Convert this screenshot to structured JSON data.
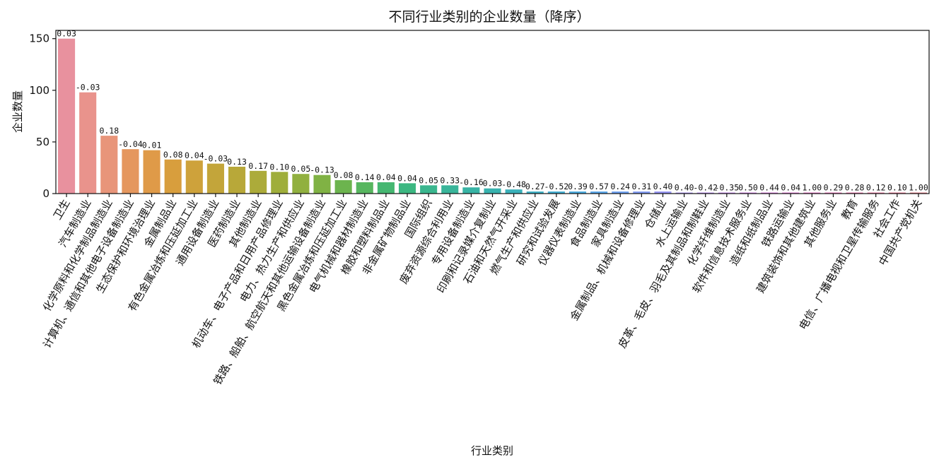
{
  "chart_data": {
    "type": "bar",
    "title": "不同行业类别的企业数量（降序）",
    "xlabel": "行业类别",
    "ylabel": "企业数量",
    "ylim": [
      0,
      158
    ],
    "yticks": [
      0,
      50,
      100,
      150
    ],
    "grid": false,
    "legend": "none",
    "categories": [
      "卫生",
      "汽车制造业",
      "化学原料和化学制品制造业",
      "计算机、通信和其他电子设备制造业",
      "生态保护和环境治理业",
      "金属制品业",
      "有色金属冶炼和压延加工业",
      "通用设备制造业",
      "医药制造业",
      "其他制造业",
      "机动车、电子产品和日用产品修理业",
      "电力、热力生产和供应业",
      "铁路、船舶、航空航天和其他运输设备制造业",
      "黑色金属冶炼和压延加工业",
      "电气机械和器材制造业",
      "橡胶和塑料制品业",
      "非金属矿物制品业",
      "国际组织",
      "废弃资源综合利用业",
      "专用设备制造业",
      "印刷和记录媒介复制业",
      "石油和天然气开采业",
      "燃气生产和供应业",
      "研究和试验发展",
      "仪器仪表制造业",
      "食品制造业",
      "家具制造业",
      "金属制品、机械和设备修理业",
      "仓储业",
      "水上运输业",
      "皮革、毛皮、羽毛及其制品和制鞋业",
      "化学纤维制造业",
      "软件和信息技术服务业",
      "造纸和纸制品业",
      "铁路运输业",
      "建筑装饰和其他建筑业",
      "其他服务业",
      "教育",
      "电信、广播电视和卫星传输服务",
      "社会工作",
      "中国共产党机关"
    ],
    "values": [
      150,
      98,
      56,
      43,
      42,
      33,
      32,
      29,
      26,
      22,
      21,
      19,
      18,
      13,
      11,
      11,
      10,
      8,
      8,
      6,
      5,
      4,
      2,
      2,
      2,
      2,
      2,
      2,
      2,
      1,
      1,
      1,
      1,
      1,
      1,
      1,
      1,
      1,
      1,
      1,
      1
    ],
    "bar_labels": [
      "0.03",
      "-0.03",
      "0.18",
      "-0.04",
      "0.01",
      "0.08",
      "0.04",
      "-0.03",
      "0.13",
      "0.17",
      "0.10",
      "0.05",
      "-0.13",
      "0.08",
      "0.14",
      "0.04",
      "0.04",
      "0.05",
      "0.33",
      "-0.16",
      "0.03",
      "-0.48",
      "0.27",
      "-0.52",
      "0.39",
      "0.57",
      "0.24",
      "0.31",
      "0.40",
      "0.40",
      "-0.42",
      "-0.35",
      "0.50",
      "0.44",
      "0.04",
      "1.00",
      "0.29",
      "0.28",
      "0.12",
      "0.10",
      "1.00"
    ],
    "colors": [
      "#E8919E",
      "#E9938C",
      "#E8957A",
      "#E5975E",
      "#DF9A48",
      "#D89E3D",
      "#CEA23B",
      "#C3A53A",
      "#B8A839",
      "#ACAB3A",
      "#9FAE3B",
      "#91B03F",
      "#80B244",
      "#6CB44E",
      "#57B65F",
      "#45B771",
      "#3CB781",
      "#3AB68E",
      "#39B59A",
      "#38B4A5",
      "#38B3AF",
      "#3AB1BA",
      "#3CB0C5",
      "#40ADD1",
      "#48AADE",
      "#58A5E9",
      "#6C9FF0",
      "#819AF2",
      "#9493F2",
      "#A58CF0",
      "#B486EE",
      "#C280EA",
      "#CE7AE4",
      "#D975DD",
      "#E271D2",
      "#E76EC6",
      "#EA6DB9",
      "#EB6EAC",
      "#EB719F",
      "#EA7492",
      "#E97786"
    ]
  }
}
